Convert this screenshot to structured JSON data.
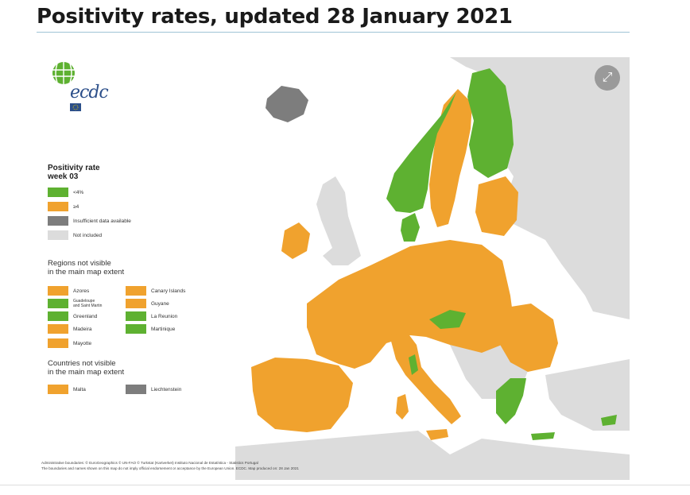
{
  "page": {
    "title": "Positivity rates, updated 28 January 2021"
  },
  "colors": {
    "green": "#5eb131",
    "orange": "#f0a22e",
    "dark_grey": "#7d7d7d",
    "light_grey": "#dcdcdc",
    "sea": "#ffffff",
    "logo_blue": "#2c4f8a"
  },
  "map": {
    "logo": {
      "text": "ecdc"
    },
    "legend": {
      "title": "Positivity rate\nweek 03",
      "items": [
        {
          "label": "<4%",
          "color": "#5eb131"
        },
        {
          "label": "≥4",
          "color": "#f0a22e"
        },
        {
          "label": "Insufficient data available",
          "color": "#7d7d7d"
        },
        {
          "label": "Not included",
          "color": "#dcdcdc"
        }
      ]
    },
    "regions": {
      "heading": "Regions not visible\nin the main map extent",
      "items": [
        {
          "label": "Azores",
          "color": "#f0a22e"
        },
        {
          "label": "Guadeloupe\nand Saint Martin",
          "color": "#5eb131"
        },
        {
          "label": "Greenland",
          "color": "#5eb131"
        },
        {
          "label": "Madeira",
          "color": "#f0a22e"
        },
        {
          "label": "Mayotte",
          "color": "#f0a22e"
        },
        {
          "label": "Canary Islands",
          "color": "#f0a22e"
        },
        {
          "label": "Guyane",
          "color": "#f0a22e"
        },
        {
          "label": "La Reunion",
          "color": "#5eb131"
        },
        {
          "label": "Martinique",
          "color": "#5eb131"
        }
      ]
    },
    "countries": {
      "heading": "Countries not visible\nin the main map extent",
      "items": [
        {
          "label": "Malta",
          "color": "#f0a22e"
        },
        {
          "label": "Liechtenstein",
          "color": "#7d7d7d"
        }
      ]
    },
    "credits": [
      "Administrative boundaries: © EuroGeographics © UN-FAO © Turkstat (Kartverket) Instituto Nacional de Estatística - Statistics Portugal",
      "The boundaries and names shown on this map do not imply official endorsement or acceptance by the European Union. ECDC. Map produced on: 28 Jan 2021"
    ],
    "expand_icon": "⤢"
  }
}
